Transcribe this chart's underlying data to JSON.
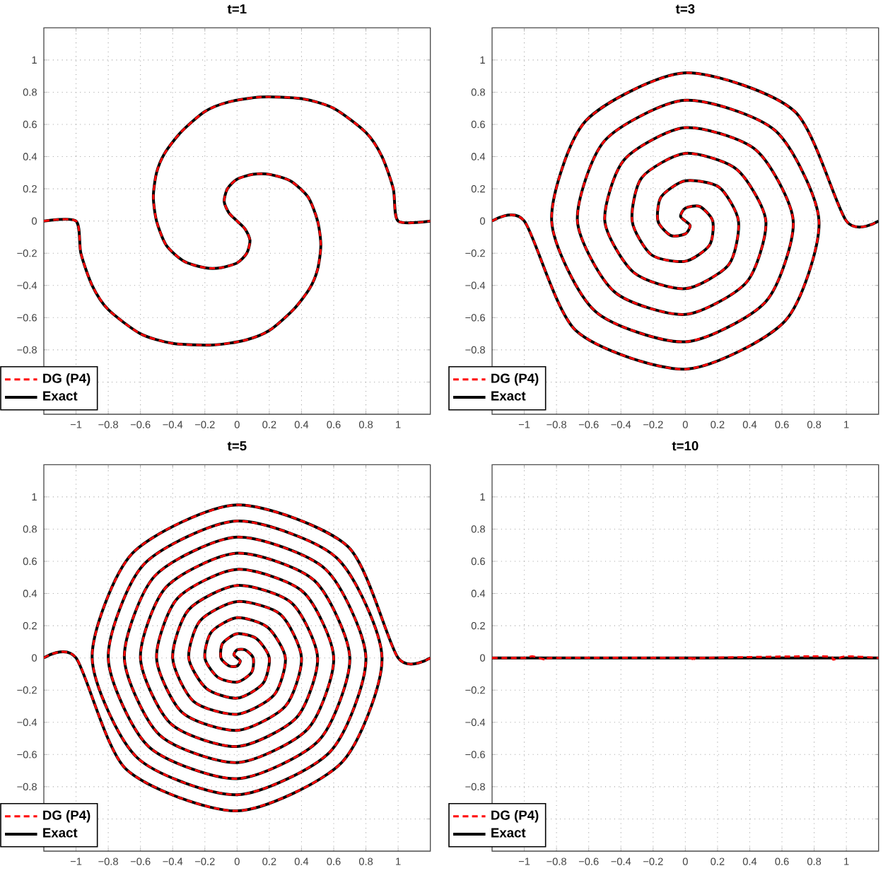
{
  "chart_data": [
    {
      "type": "line",
      "title": "t=1",
      "xlim": [
        -1.2,
        1.2
      ],
      "ylim": [
        -1.2,
        1.2
      ],
      "xticks": [
        {
          "value": -1,
          "label": "−1"
        },
        {
          "value": -0.8,
          "label": "−0.8"
        },
        {
          "value": -0.6,
          "label": "−0.6"
        },
        {
          "value": -0.4,
          "label": "−0.4"
        },
        {
          "value": -0.2,
          "label": "−0.2"
        },
        0,
        0.2,
        0.4,
        0.6,
        0.8,
        1
      ],
      "yticks": [
        {
          "value": -1,
          "label": null
        },
        {
          "value": -0.8,
          "label": "−0.8"
        },
        {
          "value": -0.6,
          "label": "−0.6"
        },
        {
          "value": -0.4,
          "label": "−0.4"
        },
        {
          "value": -0.2,
          "label": "−0.2"
        },
        0,
        0.2,
        0.4,
        0.6,
        0.8,
        1
      ],
      "grid": true,
      "legend": "bottom left",
      "series": [
        {
          "name": "DG (P4)",
          "color": "#ff0000",
          "line_style": "dashed",
          "x": [
            -1.2,
            -1,
            -0.97,
            -0.9,
            -0.8,
            -0.6,
            -0.4,
            -0.15,
            0.05,
            0.2,
            0.35,
            0.45,
            0.5,
            0.52,
            0.5,
            0.44,
            0.33,
            0.2,
            0.1,
            0,
            -0.06,
            -0.08,
            -0.05,
            0,
            0.05,
            0.08,
            0.06,
            0,
            -0.1,
            -0.2,
            -0.33,
            -0.44,
            -0.5,
            -0.52,
            -0.5,
            -0.45,
            -0.35,
            -0.2,
            -0.05,
            0.15,
            0.4,
            0.6,
            0.8,
            0.9,
            0.97,
            1,
            1.2
          ],
          "values": [
            0,
            0,
            -0.2,
            -0.4,
            -0.55,
            -0.7,
            -0.76,
            -0.77,
            -0.74,
            -0.68,
            -0.55,
            -0.42,
            -0.3,
            -0.15,
            0,
            0.15,
            0.25,
            0.29,
            0.29,
            0.26,
            0.2,
            0.12,
            0.05,
            0,
            -0.05,
            -0.12,
            -0.2,
            -0.26,
            -0.29,
            -0.29,
            -0.25,
            -0.15,
            0,
            0.15,
            0.3,
            0.42,
            0.55,
            0.68,
            0.74,
            0.77,
            0.76,
            0.7,
            0.55,
            0.4,
            0.2,
            0,
            0
          ]
        },
        {
          "name": "Exact",
          "color": "#000000",
          "line_style": "solid",
          "x": [
            -1.2,
            -1,
            -0.97,
            -0.9,
            -0.8,
            -0.6,
            -0.4,
            -0.15,
            0.05,
            0.2,
            0.35,
            0.45,
            0.5,
            0.52,
            0.5,
            0.44,
            0.33,
            0.2,
            0.1,
            0,
            -0.06,
            -0.08,
            -0.05,
            0,
            0.05,
            0.08,
            0.06,
            0,
            -0.1,
            -0.2,
            -0.33,
            -0.44,
            -0.5,
            -0.52,
            -0.5,
            -0.45,
            -0.35,
            -0.2,
            -0.05,
            0.15,
            0.4,
            0.6,
            0.8,
            0.9,
            0.97,
            1,
            1.2
          ],
          "values": [
            0,
            0,
            -0.2,
            -0.4,
            -0.55,
            -0.7,
            -0.76,
            -0.77,
            -0.74,
            -0.68,
            -0.55,
            -0.42,
            -0.3,
            -0.15,
            0,
            0.15,
            0.25,
            0.29,
            0.29,
            0.26,
            0.2,
            0.12,
            0.05,
            0,
            -0.05,
            -0.12,
            -0.2,
            -0.26,
            -0.29,
            -0.29,
            -0.25,
            -0.15,
            0,
            0.15,
            0.3,
            0.42,
            0.55,
            0.68,
            0.74,
            0.77,
            0.76,
            0.7,
            0.55,
            0.4,
            0.2,
            0,
            0
          ]
        }
      ]
    },
    {
      "type": "line",
      "title": "t=3",
      "xlim": [
        -1.2,
        1.2
      ],
      "ylim": [
        -1.2,
        1.2
      ],
      "xticks": [
        {
          "value": -1,
          "label": "−1"
        },
        {
          "value": -0.8,
          "label": "−0.8"
        },
        {
          "value": -0.6,
          "label": "−0.6"
        },
        {
          "value": -0.4,
          "label": "−0.4"
        },
        {
          "value": -0.2,
          "label": "−0.2"
        },
        0,
        0.2,
        0.4,
        0.6,
        0.8,
        1
      ],
      "yticks": [
        {
          "value": -1,
          "label": null
        },
        {
          "value": -0.8,
          "label": "−0.8"
        },
        {
          "value": -0.6,
          "label": "−0.6"
        },
        {
          "value": -0.4,
          "label": "−0.4"
        },
        {
          "value": -0.2,
          "label": "−0.2"
        },
        0,
        0.2,
        0.4,
        0.6,
        0.8,
        1
      ],
      "grid": true,
      "legend": "bottom left",
      "series": [
        {
          "name": "DG (P4)",
          "color": "#ff0000",
          "line_style": "dashed",
          "x": [
            -1.2,
            -1,
            -0.68,
            0,
            0.62,
            0.83,
            0.56,
            0,
            -0.5,
            -0.67,
            -0.44,
            0,
            0.38,
            0.5,
            0.32,
            0,
            -0.27,
            -0.33,
            -0.21,
            0,
            0.15,
            0.17,
            0.09,
            0,
            -0.03,
            0,
            0.03,
            0,
            -0.09,
            -0.17,
            -0.15,
            0,
            0.21,
            0.33,
            0.27,
            0,
            -0.32,
            -0.5,
            -0.38,
            0,
            0.44,
            0.67,
            0.5,
            0,
            -0.56,
            -0.83,
            -0.62,
            0,
            0.68,
            1,
            1.2
          ],
          "values": [
            0,
            0,
            -0.68,
            -0.92,
            -0.62,
            0,
            0.56,
            0.75,
            0.5,
            0,
            -0.44,
            -0.58,
            -0.38,
            0,
            0.32,
            0.42,
            0.27,
            0,
            -0.21,
            -0.25,
            -0.15,
            0,
            0.09,
            0.08,
            0.03,
            0,
            -0.03,
            -0.08,
            -0.09,
            0,
            0.15,
            0.25,
            0.21,
            0,
            -0.27,
            -0.42,
            -0.32,
            0,
            0.38,
            0.58,
            0.44,
            0,
            -0.5,
            -0.75,
            -0.56,
            0,
            0.62,
            0.92,
            0.68,
            0,
            0
          ]
        },
        {
          "name": "Exact",
          "color": "#000000",
          "line_style": "solid",
          "x": [
            -1.2,
            -1,
            -0.68,
            0,
            0.62,
            0.83,
            0.56,
            0,
            -0.5,
            -0.67,
            -0.44,
            0,
            0.38,
            0.5,
            0.32,
            0,
            -0.27,
            -0.33,
            -0.21,
            0,
            0.15,
            0.17,
            0.09,
            0,
            -0.03,
            0,
            0.03,
            0,
            -0.09,
            -0.17,
            -0.15,
            0,
            0.21,
            0.33,
            0.27,
            0,
            -0.32,
            -0.5,
            -0.38,
            0,
            0.44,
            0.67,
            0.5,
            0,
            -0.56,
            -0.83,
            -0.62,
            0,
            0.68,
            1,
            1.2
          ],
          "values": [
            0,
            0,
            -0.68,
            -0.92,
            -0.62,
            0,
            0.56,
            0.75,
            0.5,
            0,
            -0.44,
            -0.58,
            -0.38,
            0,
            0.32,
            0.42,
            0.27,
            0,
            -0.21,
            -0.25,
            -0.15,
            0,
            0.09,
            0.08,
            0.03,
            0,
            -0.03,
            -0.08,
            -0.09,
            0,
            0.15,
            0.25,
            0.21,
            0,
            -0.27,
            -0.42,
            -0.32,
            0,
            0.38,
            0.58,
            0.44,
            0,
            -0.5,
            -0.75,
            -0.56,
            0,
            0.62,
            0.92,
            0.68,
            0,
            0
          ]
        }
      ]
    },
    {
      "type": "line",
      "title": "t=5",
      "xlim": [
        -1.2,
        1.2
      ],
      "ylim": [
        -1.2,
        1.2
      ],
      "xticks": [
        {
          "value": -1,
          "label": "−1"
        },
        {
          "value": -0.8,
          "label": "−0.8"
        },
        {
          "value": -0.6,
          "label": "−0.6"
        },
        {
          "value": -0.4,
          "label": "−0.4"
        },
        {
          "value": -0.2,
          "label": "−0.2"
        },
        0,
        0.2,
        0.4,
        0.6,
        0.8,
        1
      ],
      "yticks": [
        {
          "value": -1,
          "label": null
        },
        {
          "value": -0.8,
          "label": "−0.8"
        },
        {
          "value": -0.6,
          "label": "−0.6"
        },
        {
          "value": -0.4,
          "label": "−0.4"
        },
        {
          "value": -0.2,
          "label": "−0.2"
        },
        0,
        0.2,
        0.4,
        0.6,
        0.8,
        1
      ],
      "grid": true,
      "legend": "bottom left",
      "series": [
        {
          "name": "DG (P4)",
          "color": "#ff0000",
          "line_style": "dashed",
          "x": [
            -1.2,
            -1,
            -0.69,
            0,
            0.65,
            0.9,
            0.62,
            0,
            -0.58,
            -0.8,
            -0.55,
            0,
            0.51,
            0.7,
            0.48,
            0,
            -0.44,
            -0.6,
            -0.41,
            0,
            0.37,
            0.5,
            0.34,
            0,
            -0.3,
            -0.4,
            -0.27,
            0,
            0.23,
            0.3,
            0.19,
            0,
            -0.16,
            -0.2,
            -0.12,
            0,
            0.09,
            0.1,
            0.05,
            0,
            -0.02,
            0,
            0.02,
            0,
            -0.05,
            -0.1,
            -0.09,
            0,
            0.12,
            0.2,
            0.16,
            0,
            -0.19,
            -0.3,
            -0.23,
            0,
            0.27,
            0.4,
            0.3,
            0,
            -0.34,
            -0.5,
            -0.37,
            0,
            0.41,
            0.6,
            0.44,
            0,
            -0.48,
            -0.7,
            -0.51,
            0,
            0.55,
            0.8,
            0.58,
            0,
            -0.62,
            -0.9,
            -0.65,
            0,
            0.69,
            1,
            1.2
          ],
          "values": [
            0,
            0,
            -0.69,
            -0.95,
            -0.65,
            0,
            0.62,
            0.85,
            0.58,
            0,
            -0.55,
            -0.75,
            -0.51,
            0,
            0.48,
            0.65,
            0.44,
            0,
            -0.41,
            -0.55,
            -0.37,
            0,
            0.34,
            0.45,
            0.3,
            0,
            -0.27,
            -0.35,
            -0.23,
            0,
            0.19,
            0.25,
            0.16,
            0,
            -0.12,
            -0.15,
            -0.09,
            0,
            0.05,
            0.05,
            0.02,
            0,
            -0.02,
            -0.05,
            -0.05,
            0,
            0.09,
            0.15,
            0.12,
            0,
            -0.16,
            -0.25,
            -0.19,
            0,
            0.23,
            0.35,
            0.27,
            0,
            -0.3,
            -0.45,
            -0.34,
            0,
            0.37,
            0.55,
            0.41,
            0,
            -0.44,
            -0.65,
            -0.48,
            0,
            0.51,
            0.75,
            0.55,
            0,
            -0.58,
            -0.85,
            -0.62,
            0,
            0.65,
            0.95,
            0.69,
            0,
            0
          ]
        },
        {
          "name": "Exact",
          "color": "#000000",
          "line_style": "solid",
          "x": [
            -1.2,
            -1,
            -0.69,
            0,
            0.65,
            0.9,
            0.62,
            0,
            -0.58,
            -0.8,
            -0.55,
            0,
            0.51,
            0.7,
            0.48,
            0,
            -0.44,
            -0.6,
            -0.41,
            0,
            0.37,
            0.5,
            0.34,
            0,
            -0.3,
            -0.4,
            -0.27,
            0,
            0.23,
            0.3,
            0.19,
            0,
            -0.16,
            -0.2,
            -0.12,
            0,
            0.09,
            0.1,
            0.05,
            0,
            -0.02,
            0,
            0.02,
            0,
            -0.05,
            -0.1,
            -0.09,
            0,
            0.12,
            0.2,
            0.16,
            0,
            -0.19,
            -0.3,
            -0.23,
            0,
            0.27,
            0.4,
            0.3,
            0,
            -0.34,
            -0.5,
            -0.37,
            0,
            0.41,
            0.6,
            0.44,
            0,
            -0.48,
            -0.7,
            -0.51,
            0,
            0.55,
            0.8,
            0.58,
            0,
            -0.62,
            -0.9,
            -0.65,
            0,
            0.69,
            1,
            1.2
          ],
          "values": [
            0,
            0,
            -0.69,
            -0.95,
            -0.65,
            0,
            0.62,
            0.85,
            0.58,
            0,
            -0.55,
            -0.75,
            -0.51,
            0,
            0.48,
            0.65,
            0.44,
            0,
            -0.41,
            -0.55,
            -0.37,
            0,
            0.34,
            0.45,
            0.3,
            0,
            -0.27,
            -0.35,
            -0.23,
            0,
            0.19,
            0.25,
            0.16,
            0,
            -0.12,
            -0.15,
            -0.09,
            0,
            0.05,
            0.05,
            0.02,
            0,
            -0.02,
            -0.05,
            -0.05,
            0,
            0.09,
            0.15,
            0.12,
            0,
            -0.16,
            -0.25,
            -0.19,
            0,
            0.23,
            0.35,
            0.27,
            0,
            -0.3,
            -0.45,
            -0.34,
            0,
            0.37,
            0.55,
            0.41,
            0,
            -0.44,
            -0.65,
            -0.48,
            0,
            0.51,
            0.75,
            0.55,
            0,
            -0.58,
            -0.85,
            -0.62,
            0,
            0.65,
            0.95,
            0.69,
            0,
            0
          ]
        }
      ]
    },
    {
      "type": "line",
      "title": "t=10",
      "xlim": [
        -1.2,
        1.2
      ],
      "ylim": [
        -1.2,
        1.2
      ],
      "xticks": [
        {
          "value": -1,
          "label": "−1"
        },
        {
          "value": -0.8,
          "label": "−0.8"
        },
        {
          "value": -0.6,
          "label": "−0.6"
        },
        {
          "value": -0.4,
          "label": "−0.4"
        },
        {
          "value": -0.2,
          "label": "−0.2"
        },
        0,
        0.2,
        0.4,
        0.6,
        0.8,
        1
      ],
      "yticks": [
        {
          "value": -1,
          "label": null
        },
        {
          "value": -0.8,
          "label": "−0.8"
        },
        {
          "value": -0.6,
          "label": "−0.6"
        },
        {
          "value": -0.4,
          "label": "−0.4"
        },
        {
          "value": -0.2,
          "label": "−0.2"
        },
        0,
        0.2,
        0.4,
        0.6,
        0.8,
        1
      ],
      "grid": true,
      "legend": "bottom left",
      "series": [
        {
          "name": "DG (P4)",
          "color": "#ff0000",
          "line_style": "dashed",
          "x": [
            -1.2,
            -1,
            -0.95,
            -0.87,
            -0.8,
            0,
            0.05,
            0.1,
            0.85,
            0.92,
            1,
            1.2
          ],
          "values": [
            0,
            0,
            0.01,
            -0.01,
            0,
            0,
            -0.01,
            0,
            0.01,
            -0.01,
            0.01,
            0
          ]
        },
        {
          "name": "Exact",
          "color": "#000000",
          "line_style": "solid",
          "x": [
            -1.2,
            1.2
          ],
          "values": [
            0,
            0
          ]
        }
      ]
    }
  ]
}
